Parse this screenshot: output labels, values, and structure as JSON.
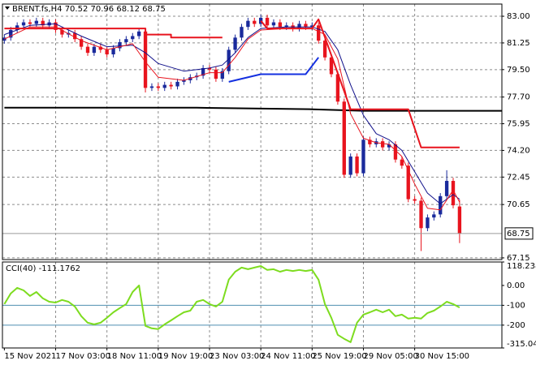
{
  "chart_data": {
    "type": "candlestick",
    "title": "BRENT.fs,H4",
    "categories": [
      "15 Nov 2021",
      null,
      null,
      null,
      null,
      null,
      null,
      null,
      "17 Nov 03:00",
      null,
      null,
      null,
      null,
      null,
      null,
      null,
      "18 Nov 11:00",
      null,
      null,
      null,
      null,
      null,
      null,
      null,
      "19 Nov 19:00",
      null,
      null,
      null,
      null,
      null,
      null,
      null,
      "23 Nov 03:00",
      null,
      null,
      null,
      null,
      null,
      null,
      null,
      "24 Nov 11:00",
      null,
      null,
      null,
      null,
      null,
      null,
      null,
      "25 Nov 19:00",
      null,
      null,
      null,
      null,
      null,
      null,
      null,
      "29 Nov 05:00",
      null,
      null,
      null,
      null,
      null,
      null,
      null,
      "30 Nov 15:00",
      null,
      null,
      null,
      null,
      null,
      null,
      null
    ],
    "open": [
      81.4,
      81.6,
      82.1,
      82.4,
      82.6,
      82.5,
      82.7,
      82.4,
      82.6,
      82.1,
      81.8,
      81.9,
      81.5,
      81.0,
      80.6,
      81.0,
      80.8,
      80.5,
      80.9,
      81.3,
      81.5,
      81.7,
      82.0,
      78.3,
      78.4,
      78.3,
      78.5,
      78.4,
      78.7,
      78.8,
      79.0,
      79.1,
      79.6,
      79.5,
      78.9,
      79.4,
      80.8,
      81.6,
      82.3,
      82.7,
      82.5,
      82.9,
      82.4,
      82.6,
      82.3,
      82.4,
      82.2,
      82.5,
      82.3,
      82.4,
      81.4,
      80.3,
      79.2,
      77.4,
      72.6,
      73.8,
      72.7,
      74.9,
      74.6,
      74.8,
      74.4,
      74.6,
      73.6,
      73.2,
      71.0,
      70.9,
      69.1,
      69.8,
      70.0,
      71.2,
      72.2,
      70.52
    ],
    "high": [
      81.8,
      82.3,
      82.6,
      82.8,
      82.8,
      82.9,
      82.9,
      82.8,
      82.8,
      82.3,
      82.1,
      82.1,
      81.7,
      81.2,
      81.2,
      81.2,
      81.0,
      81.1,
      81.5,
      81.7,
      81.9,
      82.2,
      82.2,
      78.6,
      78.6,
      78.7,
      78.7,
      78.9,
      79.0,
      79.2,
      79.3,
      79.8,
      79.8,
      79.7,
      79.6,
      81.0,
      81.8,
      82.5,
      82.9,
      82.9,
      83.1,
      83.1,
      82.8,
      82.8,
      82.6,
      82.6,
      82.7,
      82.7,
      82.6,
      82.6,
      81.6,
      80.5,
      79.4,
      77.6,
      74.0,
      74.0,
      75.1,
      75.1,
      75.0,
      75.0,
      74.8,
      74.8,
      73.8,
      73.4,
      71.2,
      71.1,
      70.0,
      70.2,
      71.4,
      72.9,
      72.4,
      70.96
    ],
    "low": [
      81.2,
      81.4,
      81.9,
      82.2,
      82.3,
      82.3,
      82.2,
      82.2,
      81.9,
      81.6,
      81.6,
      81.3,
      80.8,
      80.4,
      80.4,
      80.6,
      80.3,
      80.3,
      80.7,
      81.1,
      81.3,
      81.5,
      78.0,
      78.1,
      78.1,
      78.1,
      78.2,
      78.2,
      78.5,
      78.6,
      78.8,
      78.9,
      79.3,
      78.7,
      78.7,
      79.2,
      80.6,
      81.4,
      82.1,
      82.3,
      82.3,
      82.2,
      82.2,
      82.1,
      82.1,
      82.0,
      82.0,
      82.1,
      82.1,
      81.2,
      80.1,
      79.0,
      77.2,
      72.4,
      72.4,
      72.5,
      72.5,
      74.4,
      74.4,
      74.2,
      74.2,
      73.4,
      73.0,
      70.8,
      70.7,
      67.6,
      68.9,
      69.6,
      69.8,
      71.0,
      70.4,
      68.12
    ],
    "close": [
      81.6,
      82.1,
      82.4,
      82.6,
      82.5,
      82.7,
      82.4,
      82.6,
      82.1,
      81.8,
      81.9,
      81.5,
      81.0,
      80.6,
      81.0,
      80.8,
      80.5,
      80.9,
      81.3,
      81.5,
      81.7,
      82.0,
      78.3,
      78.4,
      78.3,
      78.5,
      78.4,
      78.7,
      78.8,
      79.0,
      79.1,
      79.6,
      79.5,
      78.9,
      79.4,
      80.8,
      81.6,
      82.3,
      82.7,
      82.5,
      82.9,
      82.4,
      82.6,
      82.3,
      82.4,
      82.2,
      82.5,
      82.3,
      82.4,
      81.4,
      80.3,
      79.2,
      77.4,
      72.6,
      73.8,
      72.7,
      74.9,
      74.6,
      74.8,
      74.4,
      74.6,
      73.6,
      73.2,
      71.0,
      70.9,
      69.1,
      69.8,
      70.0,
      71.2,
      72.2,
      70.6,
      68.75
    ],
    "up_color": "#1a2a9c",
    "down_color": "#e8141e",
    "xlim": [
      -0.3,
      77.6
    ],
    "ylim": [
      67.04,
      83.8
    ],
    "yticks": [
      {
        "value": 83,
        "label": "83.00"
      },
      {
        "value": 81.25,
        "label": "81.25"
      },
      {
        "value": 79.5,
        "label": "79.50"
      },
      {
        "value": 77.7,
        "label": "77.70"
      },
      {
        "value": 75.95,
        "label": "75.95"
      },
      {
        "value": 74.2,
        "label": "74.20"
      },
      {
        "value": 72.45,
        "label": "72.45"
      },
      {
        "value": 70.65,
        "label": "70.65"
      },
      {
        "value": 67.15,
        "label": "67.15"
      }
    ],
    "grid": true,
    "lines": [
      {
        "color": "#000000",
        "width": 2,
        "x": [
          0,
          16,
          30,
          48,
          56,
          77.6
        ],
        "values": [
          77.0,
          77.0,
          77.0,
          76.9,
          76.8,
          76.8
        ]
      },
      {
        "color": "#10108a",
        "width": 1,
        "x": [
          0,
          4,
          8,
          12,
          16,
          20,
          22,
          24,
          28,
          32,
          34,
          36,
          38,
          40,
          44,
          48,
          50,
          52,
          54,
          56,
          58,
          60,
          62,
          64,
          66,
          68,
          70,
          71
        ],
        "values": [
          81.8,
          82.4,
          82.5,
          81.7,
          81.0,
          81.1,
          80.6,
          79.9,
          79.4,
          79.6,
          79.8,
          80.6,
          81.6,
          82.2,
          82.3,
          82.3,
          82.0,
          80.8,
          78.5,
          76.5,
          75.3,
          74.9,
          74.2,
          72.8,
          71.4,
          70.7,
          71.3,
          71.0
        ]
      },
      {
        "color": "#e8141e",
        "width": 1,
        "x": [
          0,
          4,
          8,
          12,
          16,
          20,
          22,
          24,
          28,
          32,
          34,
          36,
          38,
          40,
          44,
          48,
          50,
          52,
          54,
          56,
          58,
          60,
          62,
          64,
          66,
          68,
          70,
          71
        ],
        "values": [
          81.5,
          82.3,
          82.3,
          81.4,
          80.8,
          81.2,
          80.0,
          79.0,
          78.8,
          79.3,
          79.3,
          80.3,
          81.5,
          82.1,
          82.2,
          82.2,
          81.8,
          80.2,
          76.6,
          75.0,
          74.7,
          74.6,
          73.8,
          72.0,
          70.4,
          70.3,
          71.6,
          70.8
        ]
      },
      {
        "color": "#e8141e",
        "width": 2,
        "x": [
          0,
          22,
          22,
          26,
          26,
          34,
          35,
          40,
          41,
          48,
          49,
          54,
          63,
          65,
          71
        ],
        "values": [
          82.2,
          82.2,
          81.8,
          81.8,
          81.6,
          81.6,
          null,
          82.7,
          82.2,
          82.2,
          82.8,
          76.9,
          76.9,
          74.4,
          74.4
        ]
      },
      {
        "color": "#1430e0",
        "width": 2,
        "x": [
          35,
          40,
          47,
          49
        ],
        "values": [
          78.7,
          79.2,
          79.2,
          80.3
        ]
      }
    ],
    "indicator": {
      "name": "CCI(40)",
      "color": "#7ddc1f",
      "values": [
        -94,
        -40,
        -12,
        -25,
        -53,
        -33,
        -65,
        -82,
        -86,
        -73,
        -82,
        -106,
        -155,
        -188,
        -196,
        -188,
        -163,
        -135,
        -114,
        -94,
        -33,
        0,
        -204,
        -216,
        -220,
        -196,
        -176,
        -155,
        -135,
        -127,
        -82,
        -73,
        -94,
        -106,
        -82,
        29,
        69,
        90,
        82,
        90,
        98,
        78,
        82,
        69,
        78,
        73,
        78,
        73,
        78,
        29,
        -94,
        -163,
        -249,
        -269,
        -286,
        -188,
        -147,
        -135,
        -122,
        -135,
        -122,
        -155,
        -147,
        -167,
        -163,
        -167,
        -139,
        -127,
        -106,
        -82,
        -94,
        -111.1762
      ],
      "ylim": [
        -315.0451,
        118.2387
      ],
      "yticks": [
        118.2387,
        {
          "value": 0,
          "label": "0.00"
        },
        -100,
        -200,
        -315.0451
      ],
      "levels": [
        -100,
        -200
      ],
      "level_color": "#4f8fb0"
    }
  }
}
